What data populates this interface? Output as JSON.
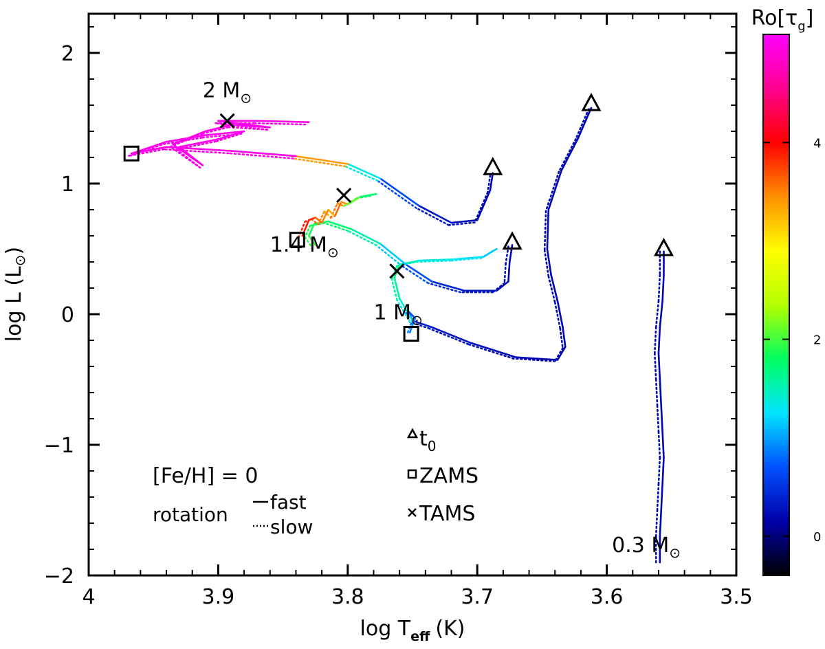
{
  "chart_data": {
    "type": "line",
    "title": "",
    "xlabel": "log T",
    "xlabel_sub": "eff",
    "xlabel_unit": "(K)",
    "ylabel": "log L (L",
    "ylabel_sym": "⊙",
    "ylabel_close": ")",
    "xlim": [
      4.0,
      3.5
    ],
    "ylim": [
      -2.0,
      2.3
    ],
    "x_ticks": [
      {
        "v": 4.0,
        "label": "4"
      },
      {
        "v": 3.9,
        "label": "3.9"
      },
      {
        "v": 3.8,
        "label": "3.8"
      },
      {
        "v": 3.7,
        "label": "3.7"
      },
      {
        "v": 3.6,
        "label": "3.6"
      },
      {
        "v": 3.5,
        "label": "3.5"
      }
    ],
    "y_ticks": [
      {
        "v": 2,
        "label": "2"
      },
      {
        "v": 1,
        "label": "1"
      },
      {
        "v": 0,
        "label": "0"
      },
      {
        "v": -1,
        "label": "−1"
      },
      {
        "v": -2,
        "label": "−2"
      }
    ],
    "colorbar": {
      "label": "Ro[τ",
      "label_sub": "g",
      "label_close": "]",
      "range": [
        -0.4,
        5.1
      ],
      "ticks": [
        {
          "v": 0,
          "label": "0"
        },
        {
          "v": 2,
          "label": "2"
        },
        {
          "v": 4,
          "label": "4"
        }
      ],
      "stops": [
        "#000000",
        "#0000aa",
        "#0050ff",
        "#00e5ff",
        "#00ff60",
        "#b4ff00",
        "#ffff00",
        "#ff9000",
        "#ff0000",
        "#ff0090",
        "#ff00ff"
      ]
    },
    "series": [
      {
        "name": "0.3 M⊙",
        "label": "0.3 M",
        "label_at": [
          3.596,
          -1.82
        ],
        "points": [
          [
            3.556,
            0.48
          ],
          [
            3.556,
            0.3
          ],
          [
            3.557,
            0.1
          ],
          [
            3.559,
            -0.1
          ],
          [
            3.56,
            -0.3
          ],
          [
            3.559,
            -0.5
          ],
          [
            3.558,
            -0.7
          ],
          [
            3.557,
            -0.9
          ],
          [
            3.556,
            -1.1
          ],
          [
            3.557,
            -1.3
          ],
          [
            3.558,
            -1.5
          ],
          [
            3.559,
            -1.7
          ],
          [
            3.559,
            -1.9
          ]
        ],
        "ro": [
          0.2,
          0.2,
          0.2,
          0.2,
          0.2,
          0.2,
          0.2,
          0.2,
          0.2,
          0.2,
          0.2,
          0.2,
          0.2
        ],
        "t0": [
          3.556,
          0.5
        ],
        "slow_offset": [
          0.003,
          0.0
        ]
      },
      {
        "name": "1 M⊙",
        "label": "1 M",
        "label_at": [
          3.78,
          -0.04
        ],
        "points": [
          [
            3.612,
            1.58
          ],
          [
            3.622,
            1.35
          ],
          [
            3.635,
            1.1
          ],
          [
            3.645,
            0.8
          ],
          [
            3.646,
            0.5
          ],
          [
            3.643,
            0.3
          ],
          [
            3.638,
            0.1
          ],
          [
            3.634,
            -0.1
          ],
          [
            3.632,
            -0.25
          ],
          [
            3.638,
            -0.35
          ],
          [
            3.67,
            -0.33
          ],
          [
            3.705,
            -0.22
          ],
          [
            3.735,
            -0.1
          ],
          [
            3.75,
            -0.05
          ],
          [
            3.753,
            0.02
          ],
          [
            3.748,
            -0.03
          ],
          [
            3.752,
            -0.14
          ]
        ],
        "ro": [
          0.2,
          0.2,
          0.2,
          0.2,
          0.2,
          0.2,
          0.2,
          0.2,
          0.2,
          0.2,
          0.2,
          0.25,
          0.3,
          0.4,
          0.6,
          0.8,
          1.0
        ],
        "t0": [
          3.612,
          1.61
        ],
        "zams": [
          3.751,
          -0.15
        ],
        "tams": [
          3.762,
          0.33
        ],
        "tail": [
          [
            3.75,
            -0.05
          ],
          [
            3.76,
            0.12
          ],
          [
            3.764,
            0.28
          ],
          [
            3.76,
            0.38
          ],
          [
            3.745,
            0.41
          ],
          [
            3.718,
            0.42
          ],
          [
            3.695,
            0.44
          ],
          [
            3.685,
            0.5
          ]
        ],
        "tail_ro": [
          1.2,
          1.5,
          1.7,
          1.6,
          1.4,
          1.3,
          1.2,
          1.1
        ],
        "slow_offset": [
          0.002,
          -0.01
        ]
      },
      {
        "name": "1.4 M⊙",
        "label": "1.4 M",
        "label_at": [
          3.86,
          0.48
        ],
        "points": [
          [
            3.673,
            0.53
          ],
          [
            3.675,
            0.4
          ],
          [
            3.676,
            0.25
          ],
          [
            3.685,
            0.18
          ],
          [
            3.71,
            0.18
          ],
          [
            3.735,
            0.25
          ],
          [
            3.755,
            0.38
          ],
          [
            3.775,
            0.54
          ],
          [
            3.797,
            0.65
          ],
          [
            3.815,
            0.71
          ],
          [
            3.826,
            0.69
          ],
          [
            3.83,
            0.6
          ],
          [
            3.825,
            0.53
          ]
        ],
        "ro": [
          0.2,
          0.2,
          0.2,
          0.25,
          0.35,
          0.5,
          0.9,
          1.4,
          1.7,
          1.8,
          1.8,
          1.9,
          2.0
        ],
        "t0": [
          3.673,
          0.55
        ],
        "zams": [
          3.839,
          0.57
        ],
        "tams": [
          3.803,
          0.91
        ],
        "tail": [
          [
            3.835,
            0.6
          ],
          [
            3.83,
            0.72
          ],
          [
            3.825,
            0.74
          ],
          [
            3.82,
            0.7
          ],
          [
            3.815,
            0.8
          ],
          [
            3.81,
            0.75
          ],
          [
            3.805,
            0.86
          ],
          [
            3.8,
            0.84
          ],
          [
            3.79,
            0.9
          ],
          [
            3.778,
            0.92
          ]
        ],
        "tail_ro": [
          4.3,
          3.5,
          4.2,
          3.0,
          4.0,
          2.6,
          4.6,
          2.3,
          1.9,
          1.6
        ],
        "slow_offset": [
          0.003,
          -0.012
        ]
      },
      {
        "name": "2 M⊙",
        "label": "2 M",
        "label_at": [
          3.912,
          1.66
        ],
        "points": [
          [
            3.688,
            1.08
          ],
          [
            3.69,
            0.95
          ],
          [
            3.7,
            0.72
          ],
          [
            3.72,
            0.7
          ],
          [
            3.745,
            0.83
          ],
          [
            3.775,
            1.04
          ],
          [
            3.8,
            1.15
          ],
          [
            3.84,
            1.21
          ],
          [
            3.89,
            1.25
          ],
          [
            3.94,
            1.28
          ],
          [
            3.967,
            1.23
          ]
        ],
        "ro": [
          0.2,
          0.2,
          0.2,
          0.25,
          0.4,
          0.9,
          1.8,
          5.0,
          5.0,
          5.0,
          5.0
        ],
        "t0": [
          3.688,
          1.12
        ],
        "zams": [
          3.967,
          1.23
        ],
        "tams": [
          3.893,
          1.48
        ],
        "tail": [
          [
            3.967,
            1.23
          ],
          [
            3.94,
            1.32
          ],
          [
            3.91,
            1.37
          ],
          [
            3.88,
            1.4
          ],
          [
            3.9,
            1.34
          ],
          [
            3.93,
            1.28
          ],
          [
            3.912,
            1.14
          ],
          [
            3.935,
            1.3
          ],
          [
            3.91,
            1.4
          ],
          [
            3.89,
            1.45
          ],
          [
            3.86,
            1.43
          ],
          [
            3.9,
            1.48
          ],
          [
            3.87,
            1.48
          ],
          [
            3.83,
            1.47
          ]
        ],
        "tail_ro": [
          5.0,
          5.0,
          5.0,
          5.0,
          5.0,
          5.0,
          5.0,
          5.0,
          5.0,
          5.0,
          5.0,
          5.0,
          5.0,
          5.0
        ],
        "slow_offset": [
          0.002,
          -0.018
        ]
      }
    ],
    "annotations": {
      "feh": "[Fe/H] = 0",
      "rotation": "rotation",
      "fast": "fast",
      "slow": "slow"
    },
    "legend": [
      {
        "symbol": "triangle",
        "label": "t",
        "sub": "0"
      },
      {
        "symbol": "square",
        "label": "ZAMS"
      },
      {
        "symbol": "cross",
        "label": "TAMS"
      }
    ],
    "sun_symbol": "⊙"
  }
}
